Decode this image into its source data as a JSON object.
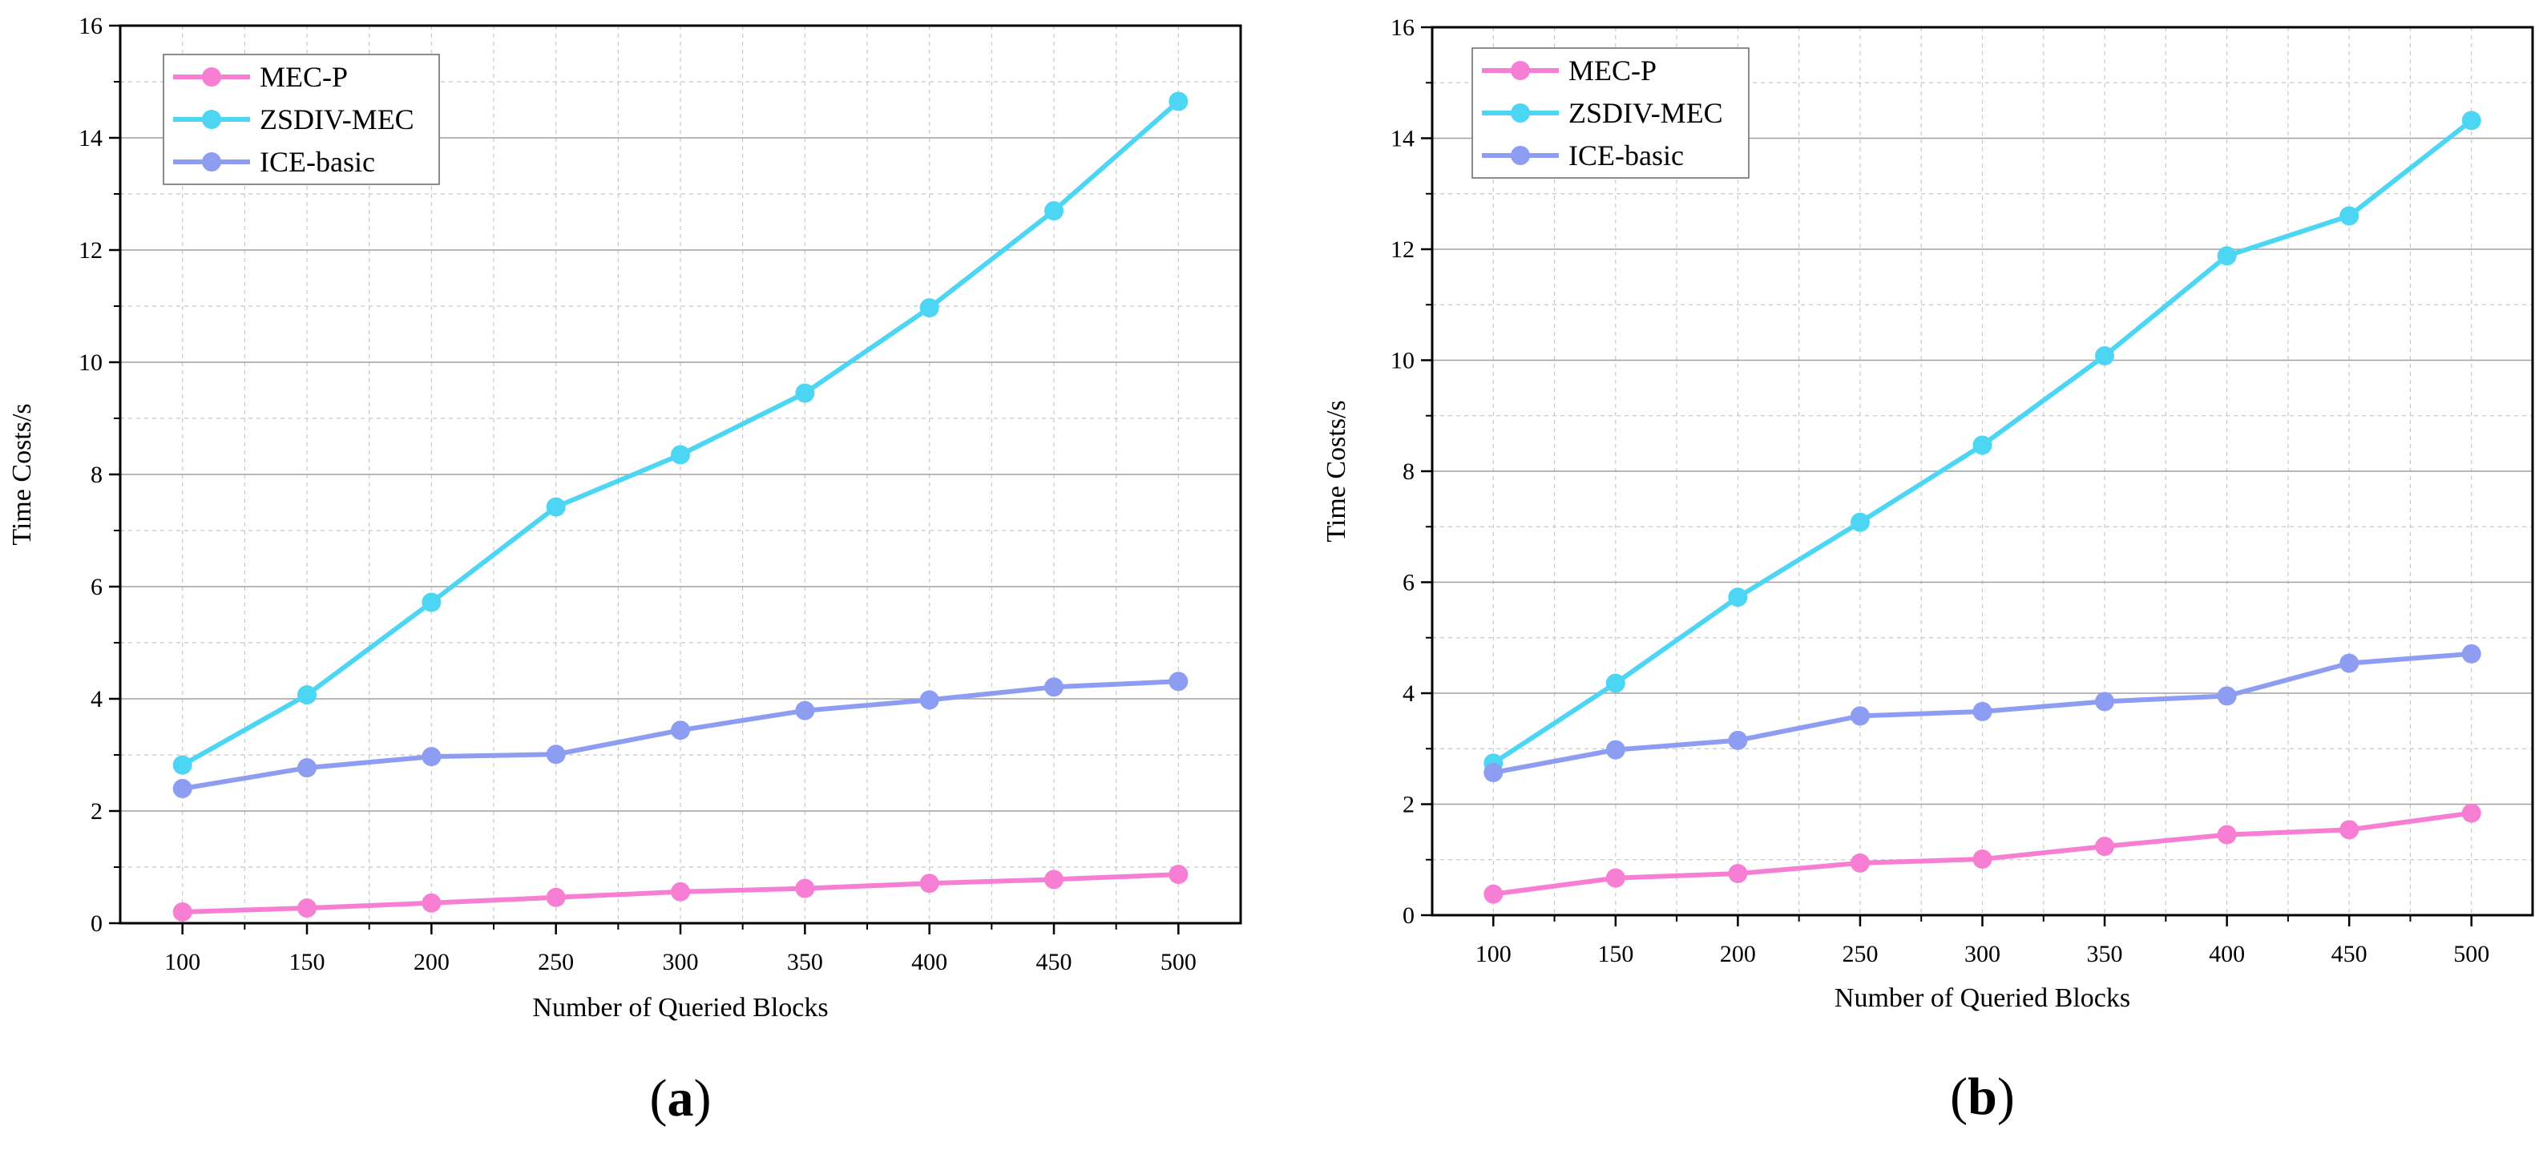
{
  "colors": {
    "MEC-P": "#F77FD3",
    "ZSDIV-MEC": "#4DD6F3",
    "ICE-basic": "#8C9DF2"
  },
  "chart_data": [
    {
      "type": "line",
      "panel": "a",
      "panel_label": "(a)",
      "panel_letter": "a",
      "xlabel": "Number of Queried Blocks",
      "ylabel": "Time Costs/s",
      "x": [
        100,
        150,
        200,
        250,
        300,
        350,
        400,
        450,
        500
      ],
      "xlim": [
        75,
        525
      ],
      "ylim": [
        0,
        16
      ],
      "yticks": [
        0,
        2,
        4,
        6,
        8,
        10,
        12,
        14,
        16
      ],
      "grid": true,
      "legend_position": "top-left",
      "series": [
        {
          "name": "MEC-P",
          "values": [
            0.2,
            0.27,
            0.36,
            0.46,
            0.56,
            0.62,
            0.71,
            0.78,
            0.87
          ]
        },
        {
          "name": "ZSDIV-MEC",
          "values": [
            2.82,
            4.07,
            5.72,
            7.42,
            8.35,
            9.45,
            10.97,
            12.7,
            14.65
          ]
        },
        {
          "name": "ICE-basic",
          "values": [
            2.4,
            2.77,
            2.97,
            3.01,
            3.44,
            3.79,
            3.98,
            4.21,
            4.31
          ]
        }
      ]
    },
    {
      "type": "line",
      "panel": "b",
      "panel_label": "(b)",
      "panel_letter": "b",
      "xlabel": "Number of Queried Blocks",
      "ylabel": "Time Costs/s",
      "x": [
        100,
        150,
        200,
        250,
        300,
        350,
        400,
        450,
        500
      ],
      "xlim": [
        75,
        525
      ],
      "ylim": [
        0,
        16
      ],
      "yticks": [
        0,
        2,
        4,
        6,
        8,
        10,
        12,
        14,
        16
      ],
      "grid": true,
      "legend_position": "top-left",
      "series": [
        {
          "name": "MEC-P",
          "values": [
            0.38,
            0.67,
            0.75,
            0.94,
            1.01,
            1.24,
            1.45,
            1.54,
            1.84
          ]
        },
        {
          "name": "ZSDIV-MEC",
          "values": [
            2.74,
            4.18,
            5.73,
            7.08,
            8.47,
            10.08,
            11.88,
            12.6,
            14.32
          ]
        },
        {
          "name": "ICE-basic",
          "values": [
            2.57,
            2.98,
            3.15,
            3.59,
            3.67,
            3.85,
            3.95,
            4.54,
            4.71
          ]
        }
      ]
    }
  ]
}
